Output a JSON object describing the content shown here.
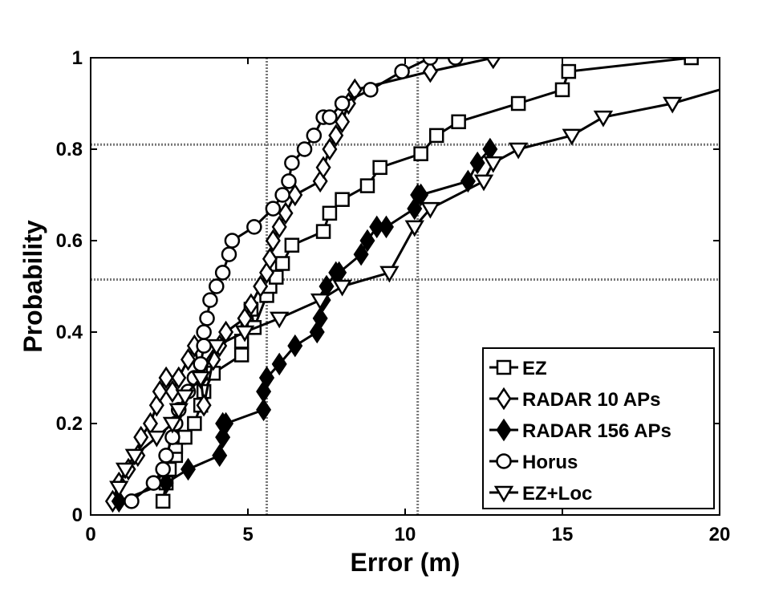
{
  "chart_data": {
    "type": "line",
    "xlabel": "Error (m)",
    "ylabel": "Probability",
    "xlim": [
      0,
      20
    ],
    "ylim": [
      0,
      1
    ],
    "xticks": [
      "0",
      "5",
      "10",
      "15",
      "20"
    ],
    "yticks": [
      "0",
      "0.2",
      "0.4",
      "0.6",
      "0.8",
      "1"
    ],
    "legend_position": "bottom-right",
    "reference_lines": {
      "x": [
        5.6,
        10.4
      ],
      "y": [
        0.515,
        0.81
      ]
    },
    "series": [
      {
        "name": "EZ",
        "marker": "square-open",
        "x": [
          2.3,
          2.4,
          2.5,
          2.7,
          2.7,
          2.8,
          3.0,
          3.3,
          3.5,
          3.6,
          3.9,
          4.8,
          4.8,
          5.0,
          5.1,
          5.2,
          5.6,
          5.7,
          5.9,
          6.1,
          6.4,
          7.4,
          7.6,
          8.0,
          8.8,
          9.2,
          10.5,
          11.0,
          11.7,
          13.6,
          15.0,
          15.2,
          19.1
        ],
        "y": [
          0.03,
          0.07,
          0.1,
          0.13,
          0.15,
          0.17,
          0.17,
          0.2,
          0.24,
          0.27,
          0.31,
          0.35,
          0.38,
          0.41,
          0.45,
          0.41,
          0.48,
          0.5,
          0.52,
          0.55,
          0.59,
          0.62,
          0.66,
          0.69,
          0.72,
          0.76,
          0.79,
          0.83,
          0.86,
          0.9,
          0.93,
          0.97,
          1.0
        ]
      },
      {
        "name": "RADAR 10 APs",
        "marker": "diamond-open",
        "x": [
          0.7,
          0.9,
          1.2,
          1.5,
          1.6,
          1.9,
          2.1,
          2.2,
          2.4,
          2.6,
          2.8,
          3.1,
          3.3,
          3.5,
          3.6,
          3.9,
          4.1,
          4.3,
          4.9,
          5.1,
          5.4,
          5.6,
          5.7,
          5.8,
          6.0,
          6.2,
          6.5,
          7.3,
          7.4,
          7.6,
          7.8,
          8.0,
          8.2,
          8.4,
          10.8,
          12.8
        ],
        "y": [
          0.03,
          0.07,
          0.1,
          0.13,
          0.17,
          0.2,
          0.24,
          0.27,
          0.3,
          0.27,
          0.3,
          0.34,
          0.37,
          0.3,
          0.24,
          0.34,
          0.37,
          0.4,
          0.43,
          0.46,
          0.5,
          0.53,
          0.56,
          0.6,
          0.63,
          0.66,
          0.7,
          0.73,
          0.76,
          0.8,
          0.83,
          0.86,
          0.9,
          0.93,
          0.97,
          1.0
        ]
      },
      {
        "name": "RADAR 156 APs",
        "marker": "diamond-filled",
        "x": [
          0.9,
          2.4,
          3.1,
          4.1,
          4.2,
          4.2,
          4.3,
          5.5,
          5.5,
          5.6,
          5.6,
          6.0,
          6.5,
          7.2,
          7.3,
          7.4,
          7.5,
          7.8,
          7.9,
          8.6,
          8.8,
          9.1,
          9.4,
          10.3,
          10.4,
          10.5,
          12.0,
          12.3,
          12.7
        ],
        "y": [
          0.03,
          0.07,
          0.1,
          0.13,
          0.17,
          0.2,
          0.2,
          0.23,
          0.27,
          0.3,
          0.3,
          0.33,
          0.37,
          0.4,
          0.43,
          0.47,
          0.5,
          0.53,
          0.53,
          0.57,
          0.6,
          0.63,
          0.63,
          0.67,
          0.7,
          0.7,
          0.73,
          0.77,
          0.8
        ]
      },
      {
        "name": "Horus",
        "marker": "circle-open",
        "x": [
          1.3,
          2.0,
          2.3,
          2.4,
          2.6,
          2.7,
          2.8,
          3.1,
          3.3,
          3.5,
          3.6,
          3.6,
          3.7,
          3.8,
          4.0,
          4.2,
          4.4,
          4.5,
          5.2,
          5.8,
          6.1,
          6.3,
          6.4,
          6.8,
          7.1,
          7.4,
          7.6,
          8.0,
          8.9,
          9.9,
          10.8,
          11.6
        ],
        "y": [
          0.03,
          0.07,
          0.1,
          0.13,
          0.17,
          0.2,
          0.23,
          0.27,
          0.3,
          0.33,
          0.37,
          0.4,
          0.43,
          0.47,
          0.5,
          0.53,
          0.57,
          0.6,
          0.63,
          0.67,
          0.7,
          0.73,
          0.77,
          0.8,
          0.83,
          0.87,
          0.87,
          0.9,
          0.93,
          0.97,
          1.0,
          1.0
        ]
      },
      {
        "name": "EZ+Loc",
        "marker": "triangle-down-open",
        "x": [
          0.9,
          1.1,
          1.4,
          2.1,
          2.6,
          2.8,
          3.0,
          3.5,
          4.0,
          4.9,
          6.0,
          7.3,
          8.0,
          9.5,
          10.3,
          10.8,
          12.5,
          12.8,
          13.6,
          15.3,
          16.3,
          18.5,
          20.0
        ],
        "y": [
          0.06,
          0.1,
          0.13,
          0.17,
          0.2,
          0.23,
          0.26,
          0.3,
          0.37,
          0.4,
          0.43,
          0.47,
          0.5,
          0.53,
          0.63,
          0.67,
          0.73,
          0.77,
          0.8,
          0.83,
          0.87,
          0.9,
          0.93
        ]
      }
    ]
  }
}
